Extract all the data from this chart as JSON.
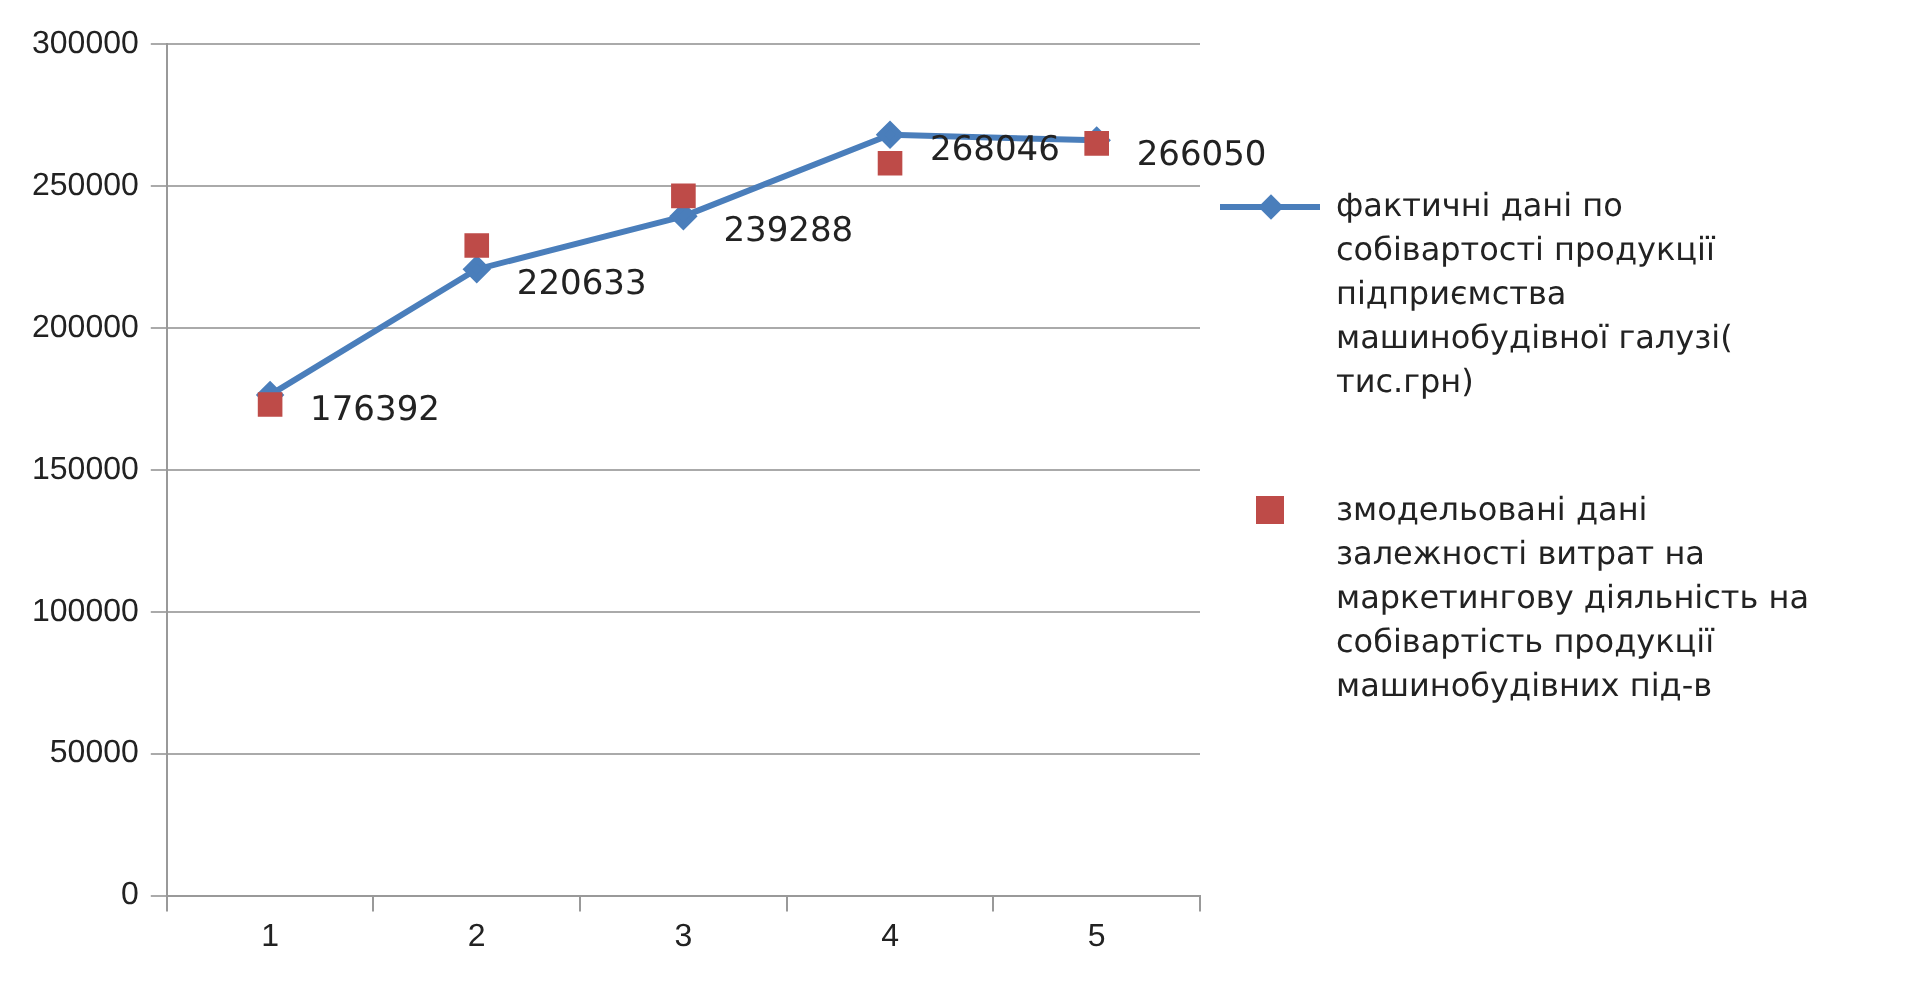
{
  "chart_data": {
    "type": "line",
    "categories": [
      "1",
      "2",
      "3",
      "4",
      "5"
    ],
    "ylim": [
      0,
      300000
    ],
    "yticks": [
      0,
      50000,
      100000,
      150000,
      200000,
      250000,
      300000
    ],
    "grid": "y",
    "legend": "right",
    "series": [
      {
        "name": "фактичні дані по собівартості продукції підприємства машинобудівної галузі( тис.грн)",
        "color": "#4a7ebb",
        "marker": "diamond",
        "values": [
          176392,
          220633,
          239288,
          268046,
          266050
        ],
        "value_labels": [
          "176392",
          "220633",
          "239288",
          "268046",
          "266050"
        ]
      },
      {
        "name": "змодельовані дані залежності витрат на маркетингову діяльність на собівартість продукції машинобудівних під-в",
        "color": "#be4b48",
        "type": "scatter",
        "marker": "square",
        "values": [
          173000,
          229000,
          246500,
          258000,
          265000
        ]
      }
    ]
  }
}
